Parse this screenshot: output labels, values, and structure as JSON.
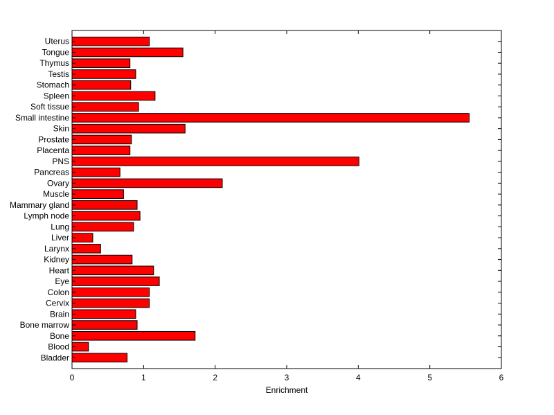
{
  "chart_data": {
    "type": "bar",
    "orientation": "horizontal",
    "title": "",
    "xlabel": "Enrichment",
    "ylabel": "",
    "xlim": [
      0,
      6
    ],
    "xticks": [
      "0",
      "1",
      "2",
      "3",
      "4",
      "5",
      "6"
    ],
    "grid": false,
    "legend": "none",
    "bar_color": "#ff0000",
    "categories": [
      "Bladder",
      "Blood",
      "Bone",
      "Bone marrow",
      "Brain",
      "Cervix",
      "Colon",
      "Eye",
      "Heart",
      "Kidney",
      "Larynx",
      "Liver",
      "Lung",
      "Lymph node",
      "Mammary gland",
      "Muscle",
      "Ovary",
      "Pancreas",
      "PNS",
      "Placenta",
      "Prostate",
      "Skin",
      "Small intestine",
      "Soft tissue",
      "Spleen",
      "Stomach",
      "Testis",
      "Thymus",
      "Tongue",
      "Uterus"
    ],
    "values": [
      0.77,
      0.23,
      1.72,
      0.91,
      0.89,
      1.08,
      1.08,
      1.22,
      1.14,
      0.84,
      0.4,
      0.29,
      0.86,
      0.95,
      0.91,
      0.72,
      2.1,
      0.67,
      4.01,
      0.81,
      0.83,
      1.58,
      5.55,
      0.93,
      1.16,
      0.82,
      0.89,
      0.81,
      1.55,
      1.08
    ]
  }
}
